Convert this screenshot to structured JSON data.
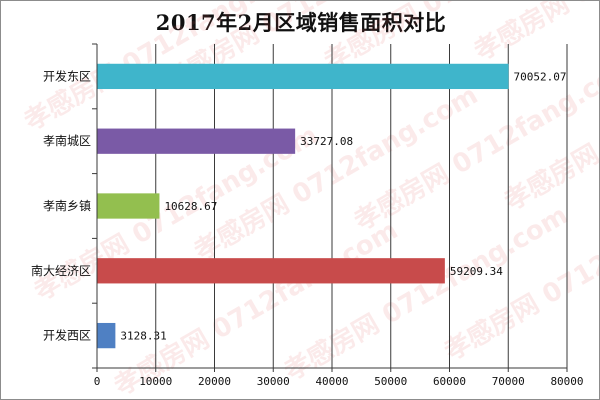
{
  "chart_data": {
    "type": "bar",
    "orientation": "horizontal",
    "title": "2017年2月区域销售面积对比",
    "xlabel": "",
    "ylabel": "",
    "categories": [
      "开发东区",
      "孝南城区",
      "孝南乡镇",
      "南大经济区",
      "开发西区"
    ],
    "values": [
      70052.07,
      33727.08,
      10628.67,
      59209.34,
      3128.31
    ],
    "value_labels": [
      "70052.07",
      "33727.08",
      "10628.67",
      "59209.34",
      "3128.31"
    ],
    "colors": [
      "#3fb5cb",
      "#7a5aa6",
      "#93bf4f",
      "#c84b4b",
      "#4f80c3"
    ],
    "xlim": [
      0,
      80000
    ],
    "xticks": [
      0,
      10000,
      20000,
      30000,
      40000,
      50000,
      60000,
      70000,
      80000
    ],
    "xtick_labels": [
      "0",
      "10000",
      "20000",
      "30000",
      "40000",
      "50000",
      "60000",
      "70000",
      "80000"
    ],
    "grid": true,
    "legend": "none"
  },
  "watermark": {
    "text": "孝感房网 0712fang.com",
    "color": "#e25b5b"
  }
}
